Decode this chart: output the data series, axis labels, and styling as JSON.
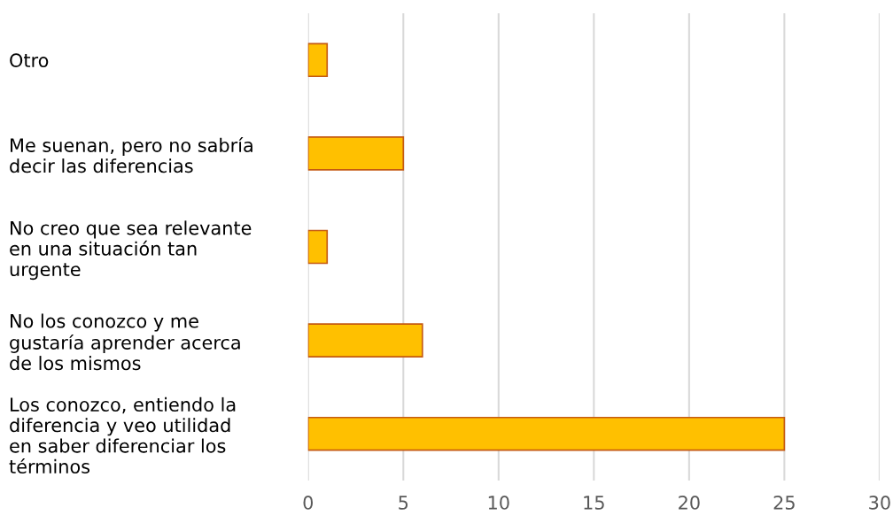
{
  "chart_data": {
    "type": "bar",
    "orientation": "horizontal",
    "categories": [
      "Otro",
      "Me suenan, pero no sabría\ndecir las diferencias",
      "No creo que sea relevante\nen una situación tan\nurgente",
      "No los conozco y me\ngustaría aprender acerca\nde los mismos",
      "Los conozco, entiendo la\ndiferencia y veo utilidad\nen saber diferenciar los\ntérminos"
    ],
    "values": [
      1,
      5,
      1,
      6,
      25
    ],
    "color": "#ffc000",
    "xlim": [
      0,
      30
    ],
    "xticks": [
      0,
      5,
      10,
      15,
      20,
      25,
      30
    ],
    "grid": "x"
  }
}
